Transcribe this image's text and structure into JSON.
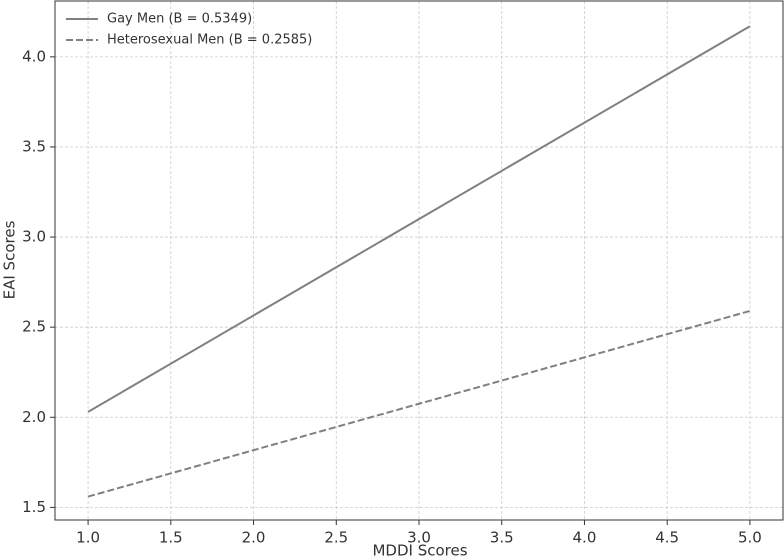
{
  "chart_data": {
    "type": "line",
    "x_label": "MDDI Scores",
    "y_label": "EAI Scores",
    "x": [
      1,
      5
    ],
    "series": [
      {
        "name": "Gay Men (B = 0.5349)",
        "color": "#808080",
        "dash": "solid",
        "values": [
          2.03,
          4.17
        ]
      },
      {
        "name": "Heterosexual Men (B = 0.2585)",
        "color": "#808080",
        "dash": "dashed",
        "values": [
          1.56,
          2.59
        ]
      }
    ],
    "xlim": [
      0.8,
      5.2
    ],
    "xticks": [
      {
        "value": 1,
        "label": "1.0"
      },
      1.5,
      {
        "value": 2,
        "label": "2.0"
      },
      2.5,
      {
        "value": 3,
        "label": "3.0"
      },
      3.5,
      {
        "value": 4,
        "label": "4.0"
      },
      4.5,
      {
        "value": 5,
        "label": "5.0"
      }
    ],
    "ylim": [
      1.43,
      4.31
    ],
    "yticks": [
      1.5,
      {
        "value": 2,
        "label": "2.0"
      },
      2.5,
      {
        "value": 3,
        "label": "3.0"
      },
      3.5,
      {
        "value": 4,
        "label": "4.0"
      }
    ],
    "grid": true,
    "legend": "upper-left"
  }
}
